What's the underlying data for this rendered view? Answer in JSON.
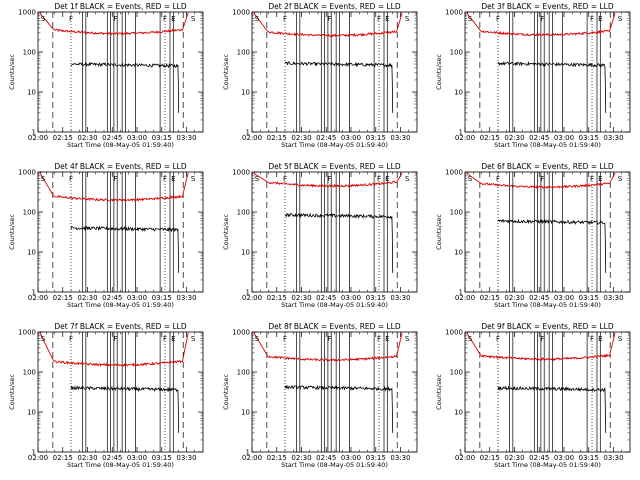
{
  "chart_data": {
    "type": "line",
    "panels": [
      {
        "title": "Det 1f BLACK = Events, RED = LLD",
        "xlabel": "Start Time (08-May-05 01:59:40)",
        "ylabel": "Counts/sec",
        "red_level": 290,
        "black_level": 50
      },
      {
        "title": "Det 2f BLACK = Events, RED = LLD",
        "xlabel": "Start Time (08-May-05 01:59:40)",
        "ylabel": "Counts/sec",
        "red_level": 260,
        "black_level": 52
      },
      {
        "title": "Det 3f BLACK = Events, RED = LLD",
        "xlabel": "Start Time (08-May-05 01:59:40)",
        "ylabel": "Counts/sec",
        "red_level": 270,
        "black_level": 52
      },
      {
        "title": "Det 4f BLACK = Events, RED = LLD",
        "xlabel": "Start Time (08-May-05 01:59:40)",
        "ylabel": "Counts/sec",
        "red_level": 200,
        "black_level": 40
      },
      {
        "title": "Det 5f BLACK = Events, RED = LLD",
        "xlabel": "Start Time (08-May-05 01:59:40)",
        "ylabel": "Counts/sec",
        "red_level": 450,
        "black_level": 85
      },
      {
        "title": "Det 6f BLACK = Events, RED = LLD",
        "xlabel": "Start Time (08-May-05 01:59:40)",
        "ylabel": "Counts/sec",
        "red_level": 420,
        "black_level": 60
      },
      {
        "title": "Det 7f BLACK = Events, RED = LLD",
        "xlabel": "Start Time (08-May-05 01:59:40)",
        "ylabel": "Counts/sec",
        "red_level": 150,
        "black_level": 40
      },
      {
        "title": "Det 8f BLACK = Events, RED = LLD",
        "xlabel": "Start Time (08-May-05 01:59:40)",
        "ylabel": "Counts/sec",
        "red_level": 200,
        "black_level": 42
      },
      {
        "title": "Det 9f BLACK = Events, RED = LLD",
        "xlabel": "Start Time (08-May-05 01:59:40)",
        "ylabel": "Counts/sec",
        "red_level": 210,
        "black_level": 40
      }
    ],
    "x_ticks": [
      "02:00",
      "02:15",
      "02:30",
      "02:45",
      "03:00",
      "03:15",
      "03:30"
    ],
    "x_tick_minutes": [
      0,
      15,
      30,
      45,
      60,
      75,
      90
    ],
    "x_range_minutes": [
      0,
      100
    ],
    "y_ticks": [
      "1",
      "10",
      "100",
      "1000"
    ],
    "y_range": [
      1,
      1000
    ],
    "y_scale": "log",
    "series_colors": {
      "events": "#000000",
      "lld": "#dd0000"
    },
    "markers": [
      {
        "label": "S",
        "minute": 3
      },
      {
        "label": "F",
        "minute": 20
      },
      {
        "label": "F",
        "minute": 47
      },
      {
        "label": "F",
        "minute": 77
      },
      {
        "label": "E",
        "minute": 82
      },
      {
        "label": "S",
        "minute": 94
      }
    ],
    "dashed_lines_minutes": [
      9,
      88
    ],
    "dotted_lines_minutes": [
      20,
      77
    ],
    "solid_lines_minutes": [
      27,
      29,
      42,
      44,
      46,
      48,
      51,
      53,
      59,
      74,
      80,
      82
    ]
  }
}
